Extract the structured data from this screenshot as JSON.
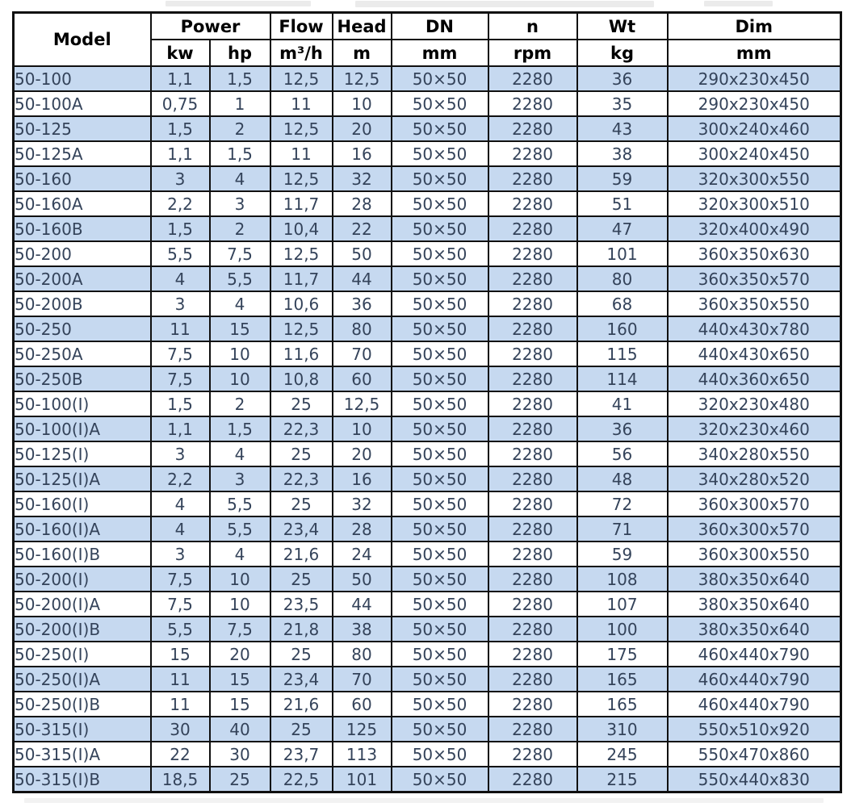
{
  "colors": {
    "row_alternate": "#c6d9f0",
    "row_plain": "#ffffff",
    "body_text": "#34435a",
    "header_text": "#000000",
    "border": "#101010"
  },
  "table": {
    "header": {
      "model": "Model",
      "power": "Power",
      "flow": "Flow",
      "head": "Head",
      "dn": "DN",
      "n": "n",
      "wt": "Wt",
      "dim": "Dim"
    },
    "units": {
      "kw": "kw",
      "hp": "hp",
      "flow": "m³/h",
      "head": "m",
      "dn": "mm",
      "n": "rpm",
      "wt": "kg",
      "dim": "mm"
    },
    "rows": [
      {
        "model": "50-100",
        "kw": "1,1",
        "hp": "1,5",
        "flow": "12,5",
        "head": "12,5",
        "dn": "50×50",
        "n": "2280",
        "wt": "36",
        "dim": "290x230x450"
      },
      {
        "model": "50-100A",
        "kw": "0,75",
        "hp": "1",
        "flow": "11",
        "head": "10",
        "dn": "50×50",
        "n": "2280",
        "wt": "35",
        "dim": "290x230x450"
      },
      {
        "model": "50-125",
        "kw": "1,5",
        "hp": "2",
        "flow": "12,5",
        "head": "20",
        "dn": "50×50",
        "n": "2280",
        "wt": "43",
        "dim": "300x240x460"
      },
      {
        "model": "50-125A",
        "kw": "1,1",
        "hp": "1,5",
        "flow": "11",
        "head": "16",
        "dn": "50×50",
        "n": "2280",
        "wt": "38",
        "dim": "300x240x450"
      },
      {
        "model": "50-160",
        "kw": "3",
        "hp": "4",
        "flow": "12,5",
        "head": "32",
        "dn": "50×50",
        "n": "2280",
        "wt": "59",
        "dim": "320x300x550"
      },
      {
        "model": "50-160A",
        "kw": "2,2",
        "hp": "3",
        "flow": "11,7",
        "head": "28",
        "dn": "50×50",
        "n": "2280",
        "wt": "51",
        "dim": "320x300x510"
      },
      {
        "model": "50-160B",
        "kw": "1,5",
        "hp": "2",
        "flow": "10,4",
        "head": "22",
        "dn": "50×50",
        "n": "2280",
        "wt": "47",
        "dim": "320x400x490"
      },
      {
        "model": "50-200",
        "kw": "5,5",
        "hp": "7,5",
        "flow": "12,5",
        "head": "50",
        "dn": "50×50",
        "n": "2280",
        "wt": "101",
        "dim": "360x350x630"
      },
      {
        "model": "50-200A",
        "kw": "4",
        "hp": "5,5",
        "flow": "11,7",
        "head": "44",
        "dn": "50×50",
        "n": "2280",
        "wt": "80",
        "dim": "360x350x570"
      },
      {
        "model": "50-200B",
        "kw": "3",
        "hp": "4",
        "flow": "10,6",
        "head": "36",
        "dn": "50×50",
        "n": "2280",
        "wt": "68",
        "dim": "360x350x550"
      },
      {
        "model": "50-250",
        "kw": "11",
        "hp": "15",
        "flow": "12,5",
        "head": "80",
        "dn": "50×50",
        "n": "2280",
        "wt": "160",
        "dim": "440x430x780"
      },
      {
        "model": "50-250A",
        "kw": "7,5",
        "hp": "10",
        "flow": "11,6",
        "head": "70",
        "dn": "50×50",
        "n": "2280",
        "wt": "115",
        "dim": "440x430x650"
      },
      {
        "model": "50-250B",
        "kw": "7,5",
        "hp": "10",
        "flow": "10,8",
        "head": "60",
        "dn": "50×50",
        "n": "2280",
        "wt": "114",
        "dim": "440x360x650"
      },
      {
        "model": "50-100(I)",
        "kw": "1,5",
        "hp": "2",
        "flow": "25",
        "head": "12,5",
        "dn": "50×50",
        "n": "2280",
        "wt": "41",
        "dim": "320x230x480"
      },
      {
        "model": "50-100(I)A",
        "kw": "1,1",
        "hp": "1,5",
        "flow": "22,3",
        "head": "10",
        "dn": "50×50",
        "n": "2280",
        "wt": "36",
        "dim": "320x230x460"
      },
      {
        "model": "50-125(I)",
        "kw": "3",
        "hp": "4",
        "flow": "25",
        "head": "20",
        "dn": "50×50",
        "n": "2280",
        "wt": "56",
        "dim": "340x280x550"
      },
      {
        "model": "50-125(I)A",
        "kw": "2,2",
        "hp": "3",
        "flow": "22,3",
        "head": "16",
        "dn": "50×50",
        "n": "2280",
        "wt": "48",
        "dim": "340x280x520"
      },
      {
        "model": "50-160(I)",
        "kw": "4",
        "hp": "5,5",
        "flow": "25",
        "head": "32",
        "dn": "50×50",
        "n": "2280",
        "wt": "72",
        "dim": "360x300x570"
      },
      {
        "model": "50-160(I)A",
        "kw": "4",
        "hp": "5,5",
        "flow": "23,4",
        "head": "28",
        "dn": "50×50",
        "n": "2280",
        "wt": "71",
        "dim": "360x300x570"
      },
      {
        "model": "50-160(I)B",
        "kw": "3",
        "hp": "4",
        "flow": "21,6",
        "head": "24",
        "dn": "50×50",
        "n": "2280",
        "wt": "59",
        "dim": "360x300x550"
      },
      {
        "model": "50-200(I)",
        "kw": "7,5",
        "hp": "10",
        "flow": "25",
        "head": "50",
        "dn": "50×50",
        "n": "2280",
        "wt": "108",
        "dim": "380x350x640"
      },
      {
        "model": "50-200(I)A",
        "kw": "7,5",
        "hp": "10",
        "flow": "23,5",
        "head": "44",
        "dn": "50×50",
        "n": "2280",
        "wt": "107",
        "dim": "380x350x640"
      },
      {
        "model": "50-200(I)B",
        "kw": "5,5",
        "hp": "7,5",
        "flow": "21,8",
        "head": "38",
        "dn": "50×50",
        "n": "2280",
        "wt": "100",
        "dim": "380x350x640"
      },
      {
        "model": "50-250(I)",
        "kw": "15",
        "hp": "20",
        "flow": "25",
        "head": "80",
        "dn": "50×50",
        "n": "2280",
        "wt": "175",
        "dim": "460x440x790"
      },
      {
        "model": "50-250(I)A",
        "kw": "11",
        "hp": "15",
        "flow": "23,4",
        "head": "70",
        "dn": "50×50",
        "n": "2280",
        "wt": "165",
        "dim": "460x440x790"
      },
      {
        "model": "50-250(I)B",
        "kw": "11",
        "hp": "15",
        "flow": "21,6",
        "head": "60",
        "dn": "50×50",
        "n": "2280",
        "wt": "165",
        "dim": "460x440x790"
      },
      {
        "model": "50-315(I)",
        "kw": "30",
        "hp": "40",
        "flow": "25",
        "head": "125",
        "dn": "50×50",
        "n": "2280",
        "wt": "310",
        "dim": "550x510x920"
      },
      {
        "model": "50-315(I)A",
        "kw": "22",
        "hp": "30",
        "flow": "23,7",
        "head": "113",
        "dn": "50×50",
        "n": "2280",
        "wt": "245",
        "dim": "550x470x860"
      },
      {
        "model": "50-315(I)B",
        "kw": "18,5",
        "hp": "25",
        "flow": "22,5",
        "head": "101",
        "dn": "50×50",
        "n": "2280",
        "wt": "215",
        "dim": "550x440x830"
      }
    ]
  }
}
